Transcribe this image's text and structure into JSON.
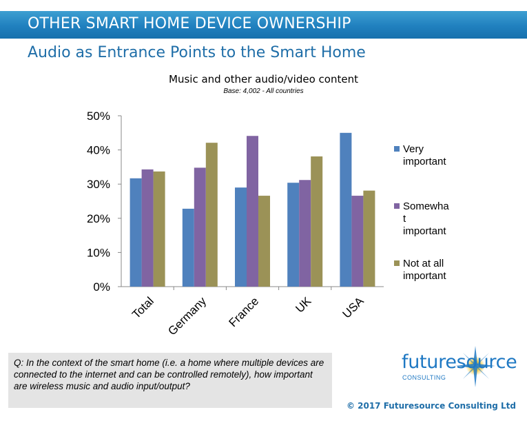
{
  "header": {
    "title": "OTHER SMART HOME DEVICE OWNERSHIP",
    "subtitle": "Audio as Entrance Points to the Smart Home"
  },
  "chart_data": {
    "type": "bar",
    "title": "Music and other audio/video content",
    "base_note": "Base: 4,002 - All countries",
    "categories": [
      "Total",
      "Germany",
      "France",
      "UK",
      "USA"
    ],
    "series": [
      {
        "name": "Very important",
        "color": "#4f81bd",
        "values": [
          31.7,
          22.8,
          29.0,
          30.4,
          45.0
        ]
      },
      {
        "name": "Somewhat important",
        "color": "#8064a2",
        "values": [
          34.3,
          34.8,
          44.1,
          31.2,
          26.6
        ]
      },
      {
        "name": "Not at all important",
        "color": "#9b9257",
        "values": [
          33.7,
          42.1,
          26.6,
          38.1,
          28.1
        ]
      }
    ],
    "y_ticks": [
      "50%",
      "40%",
      "30%",
      "20%",
      "10%",
      "0%"
    ],
    "ylim": [
      0,
      50
    ],
    "legend_labels": [
      [
        "Very",
        "important"
      ],
      [
        "Somewha",
        "t",
        "important"
      ],
      [
        "Not at all",
        "important"
      ]
    ],
    "legend_position": "right",
    "grid": false
  },
  "footer": {
    "question": "Q: In the context of the smart home (i.e. a home where multiple devices are connected to the internet and can be controlled remotely), how important are wireless music and audio input/output?",
    "logo_text": "futuresource",
    "logo_sub": "CONSULTING",
    "copyright": "© 2017 Futuresource Consulting Ltd"
  }
}
